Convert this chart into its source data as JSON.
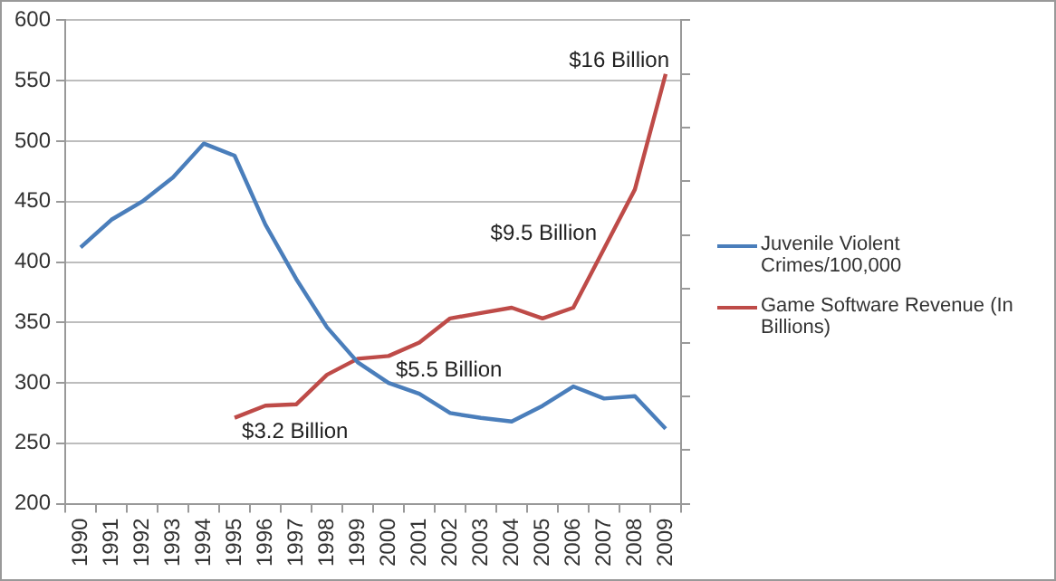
{
  "chart_data": {
    "type": "line",
    "categories": [
      "1990",
      "1991",
      "1992",
      "1993",
      "1994",
      "1995",
      "1996",
      "1997",
      "1998",
      "1999",
      "2000",
      "2001",
      "2002",
      "2003",
      "2004",
      "2005",
      "2006",
      "2007",
      "2008",
      "2009"
    ],
    "series": [
      {
        "name": "Juvenile Violent Crimes/100,000",
        "color": "#4a7ebb",
        "values": [
          412,
          435,
          450,
          470,
          498,
          488,
          431,
          386,
          346,
          317,
          300,
          291,
          275,
          271,
          268,
          281,
          297,
          287,
          289,
          262
        ]
      },
      {
        "name": "Game Software Revenue (In Billions)",
        "color": "#be4b48",
        "axis": "y2",
        "values": [
          null,
          null,
          null,
          null,
          null,
          3.2,
          3.65,
          3.7,
          4.8,
          5.4,
          5.5,
          6.0,
          6.9,
          7.1,
          7.3,
          6.9,
          7.3,
          9.5,
          11.7,
          16
        ],
        "value_labels": [
          null,
          null,
          null,
          null,
          null,
          "$3.2 Billion",
          null,
          null,
          null,
          null,
          "$5.5 Billion",
          null,
          null,
          null,
          null,
          null,
          null,
          "$9.5 Billion",
          null,
          "$16 Billion"
        ]
      }
    ],
    "ylim": [
      200,
      600
    ],
    "yticks": [
      200,
      250,
      300,
      350,
      400,
      450,
      500,
      550,
      600
    ],
    "y2lim": [
      0,
      18
    ],
    "y2ticks": [
      {
        "value": 0,
        "label": null
      },
      {
        "value": 2,
        "label": null
      },
      {
        "value": 4,
        "label": null
      },
      {
        "value": 6,
        "label": null
      },
      {
        "value": 8,
        "label": null
      },
      {
        "value": 10,
        "label": null
      },
      {
        "value": 12,
        "label": null
      },
      {
        "value": 14,
        "label": null
      },
      {
        "value": 16,
        "label": null
      },
      {
        "value": 18,
        "label": null
      }
    ],
    "grid": "y",
    "legend": "right",
    "marker": "none",
    "line_style": "solid"
  }
}
